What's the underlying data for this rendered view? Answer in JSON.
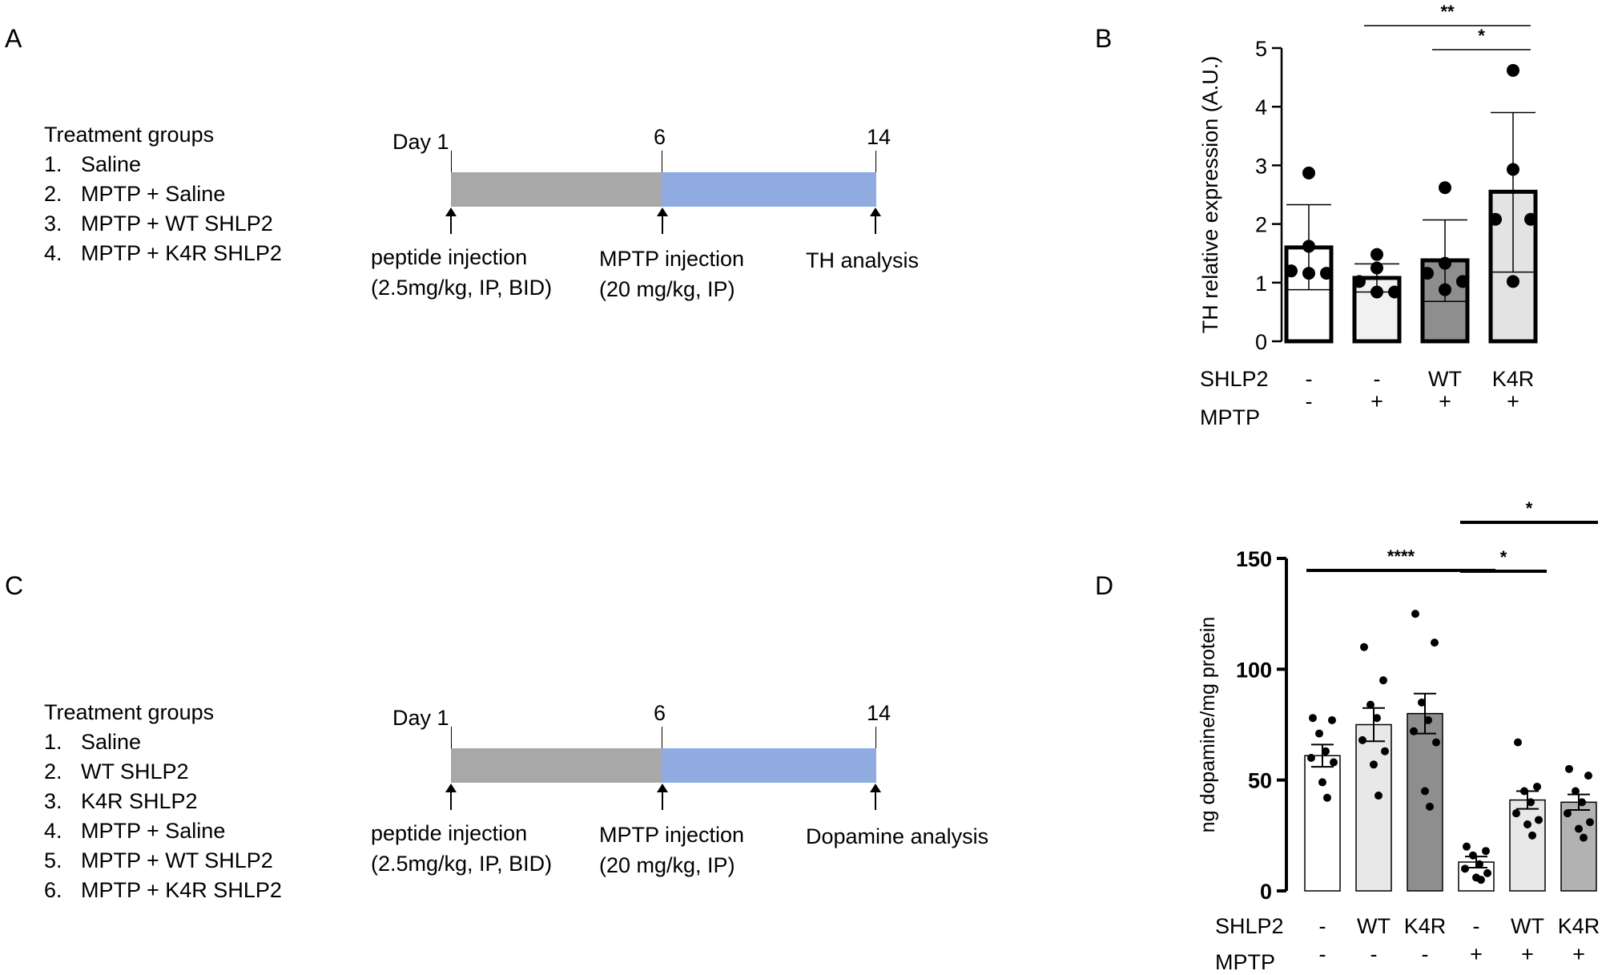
{
  "panels": {
    "A": {
      "label": "A",
      "groups_title": "Treatment groups",
      "groups": [
        "Saline",
        "MPTP + Saline",
        "MPTP + WT SHLP2",
        "MPTP + K4R SHLP2"
      ],
      "timeline": {
        "day_prefix": "Day",
        "days": [
          "1",
          "6",
          "14"
        ],
        "events": [
          [
            "peptide injection",
            "(2.5mg/kg, IP, BID)"
          ],
          [
            "MPTP injection",
            "(20 mg/kg, IP)"
          ],
          [
            "TH analysis"
          ]
        ],
        "segment_colors": [
          "#a8a8a8",
          "#8fabdf"
        ]
      }
    },
    "C": {
      "label": "C",
      "groups_title": "Treatment groups",
      "groups": [
        "Saline",
        "WT SHLP2",
        "K4R SHLP2",
        "MPTP + Saline",
        "MPTP + WT SHLP2",
        "MPTP + K4R SHLP2"
      ],
      "timeline": {
        "day_prefix": "Day",
        "days": [
          "1",
          "6",
          "14"
        ],
        "events": [
          [
            "peptide injection",
            "(2.5mg/kg, IP, BID)"
          ],
          [
            "MPTP injection",
            "(20 mg/kg, IP)"
          ],
          [
            "Dopamine analysis"
          ]
        ],
        "segment_colors": [
          "#a8a8a8",
          "#8fabdf"
        ]
      }
    },
    "B": {
      "label": "B"
    },
    "D": {
      "label": "D"
    }
  },
  "chart_data": [
    {
      "id": "B",
      "type": "bar",
      "ylabel": "TH relative expression (A.U.)",
      "ylim": [
        0,
        5
      ],
      "yticks": [
        0,
        1,
        2,
        3,
        4,
        5
      ],
      "categories": [
        "Saline",
        "MPTP + Saline",
        "MPTP + WT SHLP2",
        "MPTP + K4R SHLP2"
      ],
      "values": [
        1.6,
        1.08,
        1.38,
        2.55
      ],
      "error_low": [
        0.88,
        0.84,
        0.68,
        1.18
      ],
      "error_high": [
        2.33,
        1.32,
        2.07,
        3.9
      ],
      "points": [
        [
          2.87,
          1.62,
          1.2,
          1.16,
          1.16
        ],
        [
          1.48,
          1.25,
          1.02,
          0.84,
          0.84
        ],
        [
          2.62,
          1.33,
          1.16,
          1.02,
          0.88
        ],
        [
          4.62,
          2.93,
          2.08,
          2.08,
          1.02
        ]
      ],
      "bar_colors": [
        "#ffffff",
        "#f1f1f1",
        "#8e8e8e",
        "#e3e3e3"
      ],
      "factor_rows": [
        {
          "name": "SHLP2",
          "values": [
            "-",
            "-",
            "WT",
            "K4R"
          ]
        },
        {
          "name": "MPTP",
          "values": [
            "-",
            "+",
            "+",
            "+"
          ]
        }
      ],
      "significance": [
        {
          "from": 1,
          "to": 3,
          "label": "**"
        },
        {
          "from": 2,
          "to": 3,
          "label": "*"
        }
      ]
    },
    {
      "id": "D",
      "type": "bar",
      "ylabel": "ng dopamine/mg protein",
      "ylim": [
        0,
        150
      ],
      "yticks": [
        0,
        50,
        100,
        150
      ],
      "categories": [
        "Saline",
        "WT SHLP2",
        "K4R SHLP2",
        "MPTP + Saline",
        "MPTP + WT SHLP2",
        "MPTP + K4R SHLP2"
      ],
      "values": [
        61,
        75,
        80,
        13,
        41,
        40
      ],
      "sem": [
        5,
        7.5,
        9,
        2.5,
        4,
        3.5
      ],
      "points": [
        [
          78,
          77,
          71,
          63,
          60,
          58,
          49,
          42
        ],
        [
          110,
          95,
          84,
          78,
          68,
          63,
          57,
          43
        ],
        [
          125,
          112,
          85,
          77,
          72,
          67,
          45,
          38
        ],
        [
          20,
          18,
          16,
          12,
          10,
          8,
          6,
          5
        ],
        [
          67,
          47,
          45,
          40,
          35,
          32,
          30,
          25
        ],
        [
          55,
          52,
          45,
          40,
          35,
          31,
          28,
          24
        ]
      ],
      "bar_colors": [
        "#ffffff",
        "#e8e8e8",
        "#8e8e8e",
        "#ffffff",
        "#e8e8e8",
        "#b2b2b2"
      ],
      "factor_rows": [
        {
          "name": "SHLP2",
          "values": [
            "-",
            "WT",
            "K4R",
            "-",
            "WT",
            "K4R"
          ]
        },
        {
          "name": "MPTP",
          "values": [
            "-",
            "-",
            "-",
            "+",
            "+",
            "+"
          ]
        }
      ],
      "significance": [
        {
          "from": 0,
          "to": 3,
          "label": "****"
        },
        {
          "from": 3,
          "to": 4,
          "label": "*"
        },
        {
          "from": 3,
          "to": 5,
          "label": "*"
        }
      ]
    }
  ]
}
